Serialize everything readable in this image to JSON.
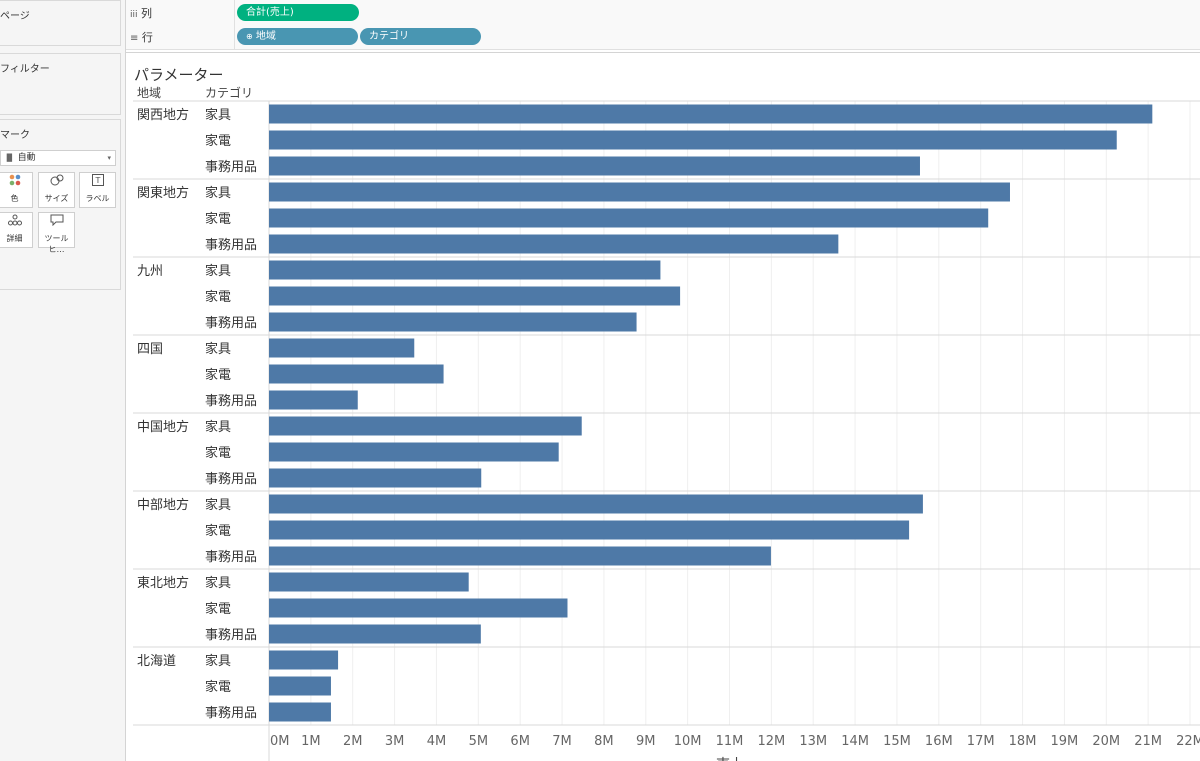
{
  "app": {
    "accent_pill_green": "#00b180",
    "accent_pill_blue": "#4996b2",
    "bar_color": "#4e79a7"
  },
  "sidebar": {
    "pages_title": "ページ",
    "filters_title": "フィルター",
    "marks_title": "マーク",
    "marks_type": "自動",
    "mark_buttons": [
      {
        "label": "色",
        "icon": "color-icon"
      },
      {
        "label": "サイズ",
        "icon": "size-icon"
      },
      {
        "label": "ラベル",
        "icon": "label-icon"
      },
      {
        "label": "詳細",
        "icon": "detail-icon"
      },
      {
        "label": "ツールヒ…",
        "icon": "tooltip-icon"
      }
    ]
  },
  "shelves": {
    "columns_label": "列",
    "columns_pill": "合計(売上)",
    "rows_label": "行",
    "rows_pills": [
      "地域",
      "カテゴリ"
    ]
  },
  "worksheet": {
    "title": "パラメーター"
  },
  "chart_data": {
    "type": "bar",
    "orientation": "horizontal",
    "row_headers": [
      "地域",
      "カテゴリ"
    ],
    "xlabel": "売上",
    "xlim": [
      0,
      22000000
    ],
    "x_ticks": [
      "0M",
      "1M",
      "2M",
      "3M",
      "4M",
      "5M",
      "6M",
      "7M",
      "8M",
      "9M",
      "10M",
      "11M",
      "12M",
      "13M",
      "14M",
      "15M",
      "16M",
      "17M",
      "18M",
      "19M",
      "20M",
      "21M",
      "22M"
    ],
    "grid": true,
    "groups": [
      {
        "region": "関西地方",
        "rows": [
          {
            "category": "家具",
            "value": 21100000
          },
          {
            "category": "家電",
            "value": 20250000
          },
          {
            "category": "事務用品",
            "value": 15550000
          }
        ]
      },
      {
        "region": "関東地方",
        "rows": [
          {
            "category": "家具",
            "value": 17700000
          },
          {
            "category": "家電",
            "value": 17180000
          },
          {
            "category": "事務用品",
            "value": 13600000
          }
        ]
      },
      {
        "region": "九州",
        "rows": [
          {
            "category": "家具",
            "value": 9350000
          },
          {
            "category": "家電",
            "value": 9820000
          },
          {
            "category": "事務用品",
            "value": 8780000
          }
        ]
      },
      {
        "region": "四国",
        "rows": [
          {
            "category": "家具",
            "value": 3470000
          },
          {
            "category": "家電",
            "value": 4170000
          },
          {
            "category": "事務用品",
            "value": 2120000
          }
        ]
      },
      {
        "region": "中国地方",
        "rows": [
          {
            "category": "家具",
            "value": 7470000
          },
          {
            "category": "家電",
            "value": 6920000
          },
          {
            "category": "事務用品",
            "value": 5070000
          }
        ]
      },
      {
        "region": "中部地方",
        "rows": [
          {
            "category": "家具",
            "value": 15620000
          },
          {
            "category": "家電",
            "value": 15290000
          },
          {
            "category": "事務用品",
            "value": 11990000
          }
        ]
      },
      {
        "region": "東北地方",
        "rows": [
          {
            "category": "家具",
            "value": 4770000
          },
          {
            "category": "家電",
            "value": 7130000
          },
          {
            "category": "事務用品",
            "value": 5060000
          }
        ]
      },
      {
        "region": "北海道",
        "rows": [
          {
            "category": "家具",
            "value": 1650000
          },
          {
            "category": "家電",
            "value": 1480000
          },
          {
            "category": "事務用品",
            "value": 1480000
          }
        ]
      }
    ]
  }
}
